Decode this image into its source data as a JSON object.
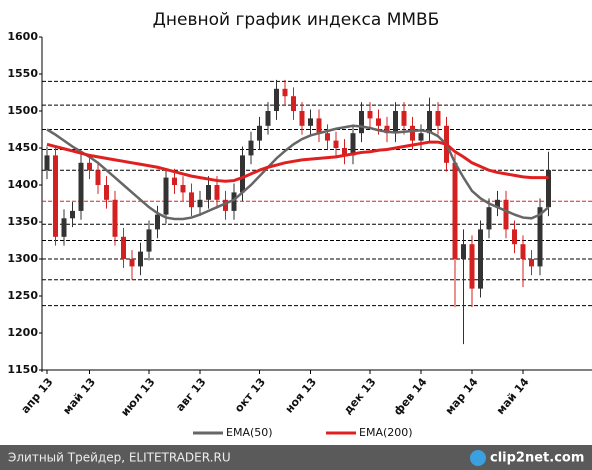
{
  "chart_data": {
    "type": "candlestick",
    "title": "Дневной график индекса ММВБ",
    "categories": [
      "апр 13",
      null,
      null,
      null,
      null,
      "май 13",
      null,
      null,
      null,
      null,
      null,
      null,
      "июл 13",
      null,
      null,
      null,
      null,
      null,
      "авг 13",
      null,
      null,
      null,
      null,
      null,
      null,
      "окт 13",
      null,
      null,
      null,
      null,
      null,
      "ноя 13",
      null,
      null,
      null,
      null,
      null,
      null,
      "дек 13",
      null,
      null,
      null,
      null,
      null,
      "фев 14",
      null,
      null,
      null,
      null,
      null,
      "мар 14",
      null,
      null,
      null,
      null,
      null,
      "май 14",
      null,
      null,
      null
    ],
    "ohlc": {
      "open": [
        1420,
        1440,
        1330,
        1355,
        1365,
        1430,
        1420,
        1400,
        1380,
        1330,
        1300,
        1290,
        1310,
        1340,
        1360,
        1410,
        1400,
        1390,
        1370,
        1380,
        1400,
        1380,
        1365,
        1390,
        1440,
        1460,
        1480,
        1500,
        1530,
        1520,
        1500,
        1480,
        1490,
        1470,
        1460,
        1450,
        1440,
        1470,
        1500,
        1490,
        1480,
        1470,
        1500,
        1480,
        1460,
        1470,
        1500,
        1480,
        1430,
        1300,
        1320,
        1260,
        1340,
        1370,
        1380,
        1340,
        1320,
        1300,
        1290,
        1370
      ],
      "high": [
        1452,
        1452,
        1367,
        1377,
        1442,
        1442,
        1432,
        1412,
        1392,
        1342,
        1312,
        1322,
        1352,
        1372,
        1422,
        1422,
        1412,
        1402,
        1392,
        1412,
        1412,
        1392,
        1402,
        1452,
        1472,
        1492,
        1512,
        1542,
        1542,
        1532,
        1512,
        1502,
        1502,
        1482,
        1472,
        1462,
        1482,
        1512,
        1512,
        1502,
        1492,
        1512,
        1512,
        1492,
        1482,
        1518,
        1512,
        1492,
        1442,
        1340,
        1332,
        1352,
        1382,
        1392,
        1392,
        1352,
        1332,
        1312,
        1382,
        1445
      ],
      "low": [
        1408,
        1318,
        1318,
        1343,
        1353,
        1408,
        1388,
        1368,
        1318,
        1288,
        1272,
        1278,
        1298,
        1328,
        1348,
        1388,
        1378,
        1358,
        1358,
        1368,
        1368,
        1353,
        1353,
        1378,
        1428,
        1448,
        1468,
        1488,
        1508,
        1488,
        1468,
        1468,
        1458,
        1448,
        1438,
        1428,
        1428,
        1458,
        1478,
        1468,
        1458,
        1458,
        1468,
        1448,
        1448,
        1458,
        1468,
        1418,
        1235,
        1185,
        1235,
        1248,
        1328,
        1358,
        1328,
        1308,
        1262,
        1278,
        1278,
        1358
      ],
      "close": [
        1440,
        1330,
        1355,
        1365,
        1430,
        1420,
        1400,
        1380,
        1330,
        1300,
        1290,
        1310,
        1340,
        1360,
        1410,
        1400,
        1390,
        1370,
        1380,
        1400,
        1380,
        1365,
        1390,
        1440,
        1460,
        1480,
        1500,
        1530,
        1520,
        1500,
        1480,
        1490,
        1470,
        1460,
        1450,
        1440,
        1470,
        1500,
        1490,
        1480,
        1470,
        1500,
        1480,
        1460,
        1470,
        1500,
        1480,
        1430,
        1300,
        1320,
        1260,
        1340,
        1370,
        1380,
        1340,
        1320,
        1300,
        1290,
        1370,
        1420
      ]
    },
    "up_color": "#333333",
    "down_color": "#d42020",
    "series": [
      {
        "name": "EMA(50)",
        "color": "#666666",
        "values": [
          1475,
          1468,
          1460,
          1452,
          1445,
          1438,
          1430,
          1420,
          1410,
          1400,
          1390,
          1380,
          1370,
          1362,
          1356,
          1354,
          1354,
          1356,
          1360,
          1365,
          1370,
          1375,
          1380,
          1390,
          1400,
          1412,
          1424,
          1436,
          1446,
          1455,
          1462,
          1467,
          1470,
          1473,
          1476,
          1478,
          1480,
          1479,
          1477,
          1474,
          1472,
          1471,
          1472,
          1473,
          1474,
          1472,
          1466,
          1455,
          1430,
          1410,
          1392,
          1382,
          1375,
          1370,
          1365,
          1360,
          1356,
          1355,
          1360,
          1370
        ]
      },
      {
        "name": "EMA(200)",
        "color": "#e02020",
        "values": [
          1455,
          1452,
          1449,
          1446,
          1443,
          1440,
          1438,
          1436,
          1434,
          1432,
          1430,
          1428,
          1426,
          1424,
          1421,
          1418,
          1415,
          1412,
          1410,
          1408,
          1406,
          1405,
          1406,
          1410,
          1415,
          1420,
          1424,
          1427,
          1430,
          1432,
          1434,
          1435,
          1436,
          1437,
          1438,
          1440,
          1442,
          1444,
          1445,
          1447,
          1448,
          1450,
          1452,
          1454,
          1456,
          1458,
          1458,
          1455,
          1445,
          1438,
          1430,
          1425,
          1420,
          1417,
          1415,
          1413,
          1411,
          1410,
          1410,
          1410
        ]
      }
    ],
    "levels": [
      {
        "value": 1540,
        "color": "#000000"
      },
      {
        "value": 1508,
        "color": "#000000"
      },
      {
        "value": 1475,
        "color": "#000000"
      },
      {
        "value": 1448,
        "color": "#000000"
      },
      {
        "value": 1420,
        "color": "#000000"
      },
      {
        "value": 1378,
        "color": "#e02020"
      },
      {
        "value": 1347,
        "color": "#000000"
      },
      {
        "value": 1325,
        "color": "#000000"
      },
      {
        "value": 1300,
        "color": "#000000"
      },
      {
        "value": 1272,
        "color": "#000000"
      },
      {
        "value": 1237,
        "color": "#000000"
      }
    ],
    "ylim": [
      1150,
      1600
    ],
    "yticks": [
      1150,
      1200,
      1250,
      1300,
      1350,
      1400,
      1450,
      1500,
      1550,
      1600
    ]
  },
  "footer": {
    "source": "Элитный Трейдер, ELITETRADER.RU",
    "logo": "clip2net.com"
  }
}
